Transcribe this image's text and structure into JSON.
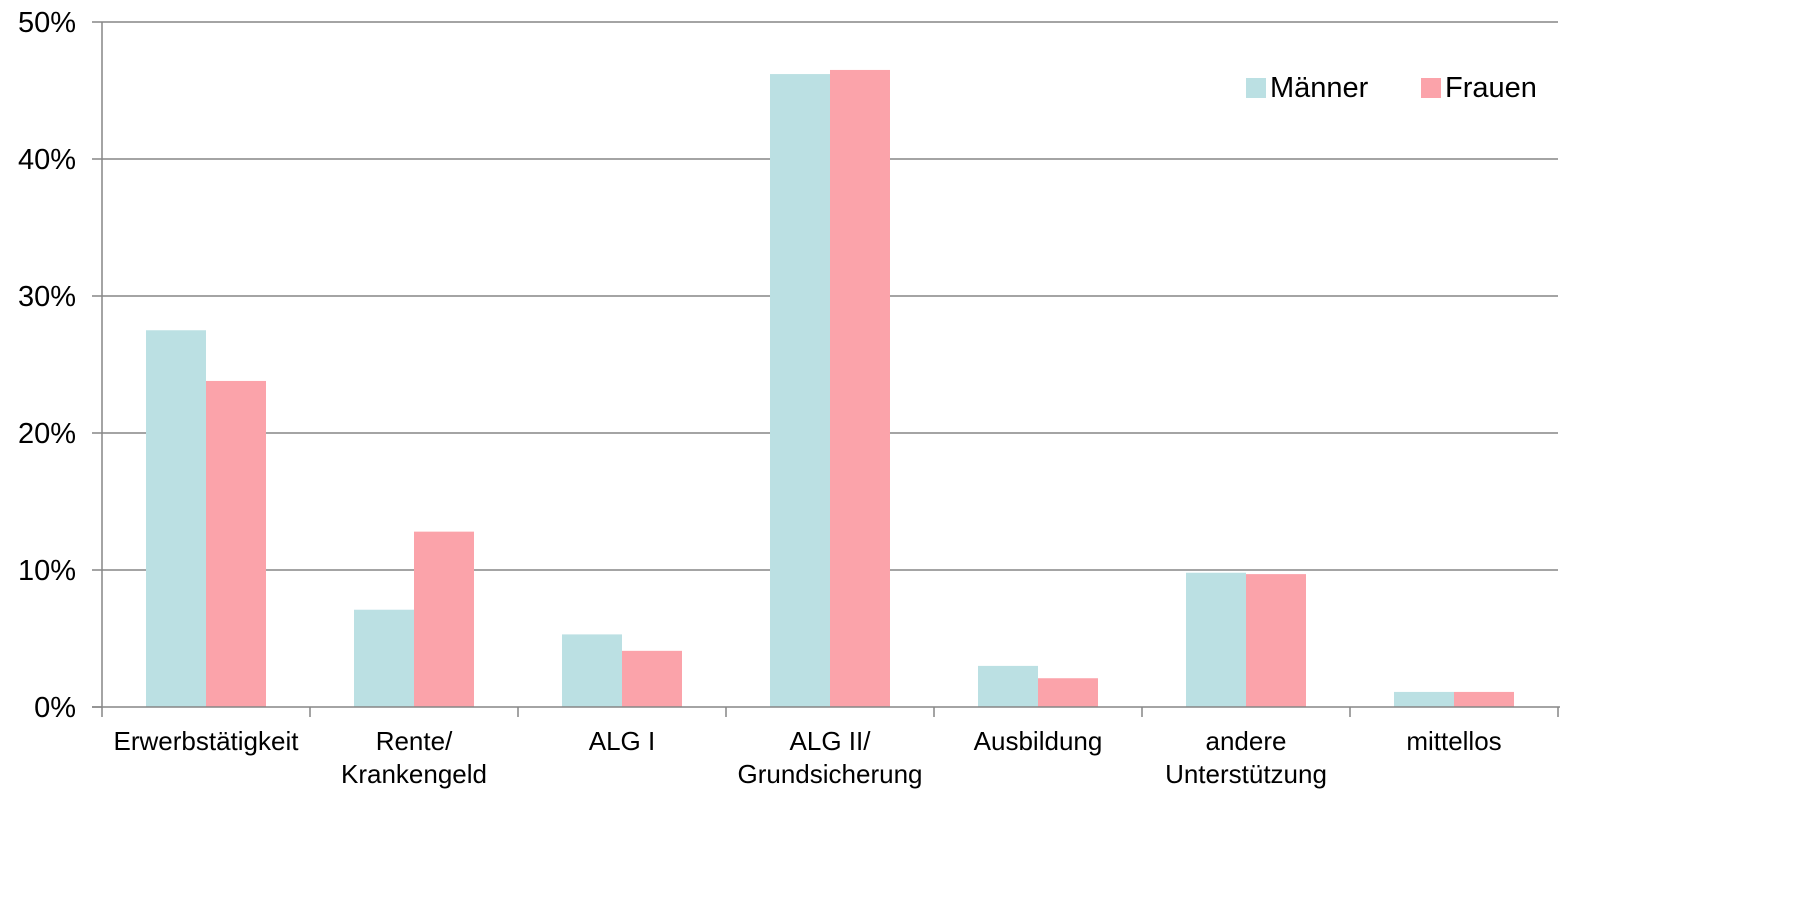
{
  "chart_data": {
    "type": "bar",
    "categories": [
      [
        "Erwerbstätigkeit"
      ],
      [
        "Rente/",
        "Krankengeld"
      ],
      [
        "ALG I"
      ],
      [
        "ALG II/",
        "Grundsicherung"
      ],
      [
        "Ausbildung"
      ],
      [
        "andere",
        "Unterstützung"
      ],
      [
        "mittellos"
      ]
    ],
    "series": [
      {
        "name": "Männer",
        "color": "#bbe0e3",
        "values": [
          27.5,
          7.1,
          5.3,
          46.2,
          3.0,
          9.8,
          1.1
        ]
      },
      {
        "name": "Frauen",
        "color": "#fba3aa",
        "values": [
          23.8,
          12.8,
          4.1,
          46.5,
          2.1,
          9.7,
          1.1
        ]
      }
    ],
    "ylim": [
      0,
      50
    ],
    "yticks": [
      0,
      10,
      20,
      30,
      40,
      50
    ],
    "ytick_format": "%",
    "grid": true,
    "legend_position": "top-right",
    "title": "",
    "xlabel": "",
    "ylabel": ""
  }
}
